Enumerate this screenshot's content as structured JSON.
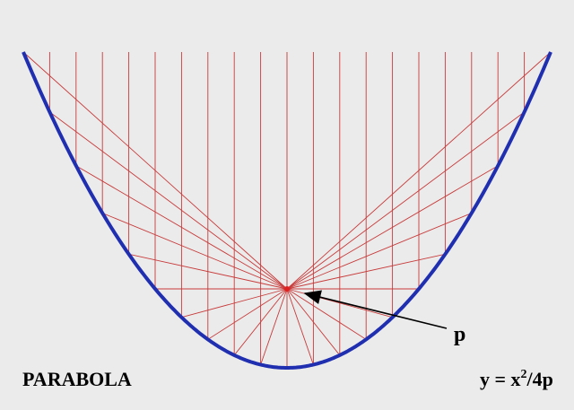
{
  "labels": {
    "title": "PARABOLA",
    "focus": "p",
    "equation": {
      "base": "y = x",
      "exponent": "2",
      "rest": "/4p"
    }
  }
}
